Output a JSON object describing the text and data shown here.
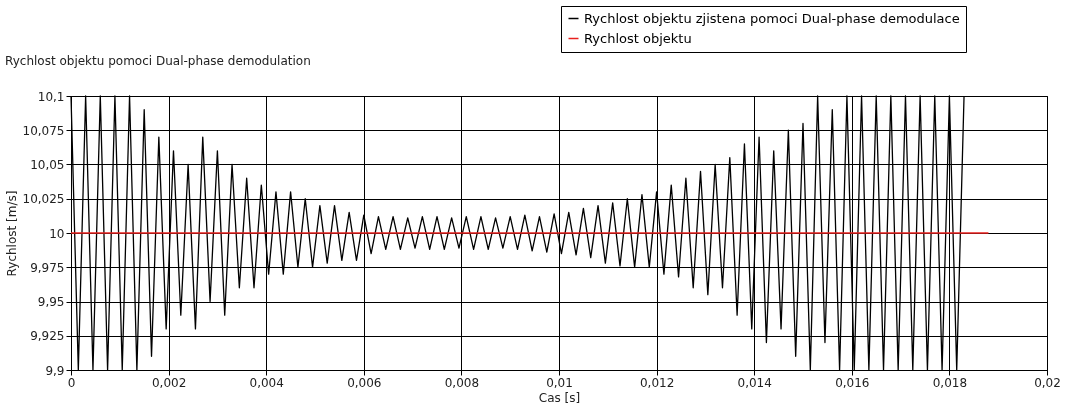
{
  "chart_data": {
    "type": "line",
    "title": "Rychlost objektu pomoci Dual-phase demodulation",
    "xlabel": "Cas [s]",
    "ylabel": "Rychlost [m/s]",
    "xlim": [
      0,
      0.02
    ],
    "ylim": [
      9.9,
      10.1
    ],
    "xticks": [
      0,
      {
        "value": 0.002,
        "label": "0,002"
      },
      {
        "value": 0.004,
        "label": "0,004"
      },
      {
        "value": 0.006,
        "label": "0,006"
      },
      {
        "value": 0.008,
        "label": "0,008"
      },
      {
        "value": 0.01,
        "label": "0,01"
      },
      {
        "value": 0.012,
        "label": "0,012"
      },
      {
        "value": 0.014,
        "label": "0,014"
      },
      {
        "value": 0.016,
        "label": "0,016"
      },
      {
        "value": 0.018,
        "label": "0,018"
      },
      {
        "value": 0.02,
        "label": "0,02"
      }
    ],
    "yticks": [
      {
        "value": 9.9,
        "label": "9,9"
      },
      {
        "value": 9.925,
        "label": "9,925"
      },
      {
        "value": 9.95,
        "label": "9,95"
      },
      {
        "value": 9.975,
        "label": "9,975"
      },
      10,
      {
        "value": 10.025,
        "label": "10,025"
      },
      {
        "value": 10.05,
        "label": "10,05"
      },
      {
        "value": 10.075,
        "label": "10,075"
      },
      {
        "value": 10.1,
        "label": "10,1"
      }
    ],
    "grid": true,
    "legend": "top right",
    "line_style": "solid",
    "marker": "none",
    "series": [
      {
        "name": "Rychlost objektu zjistena pomoci Dual-phase demodulace",
        "color": "#000000",
        "x": [
          0,
          0.00015,
          0.0003,
          0.00045,
          0.0006,
          0.00075,
          0.0009,
          0.00105,
          0.0012,
          0.00135,
          0.0015,
          0.00165,
          0.0018,
          0.00195,
          0.0021,
          0.00225,
          0.0024,
          0.00255,
          0.0027,
          0.00285,
          0.003,
          0.00315,
          0.0033,
          0.00345,
          0.0036,
          0.00375,
          0.0039,
          0.00405,
          0.0042,
          0.00435,
          0.0045,
          0.00465,
          0.0048,
          0.00495,
          0.0051,
          0.00525,
          0.0054,
          0.00555,
          0.0057,
          0.00585,
          0.006,
          0.00615,
          0.0063,
          0.00645,
          0.0066,
          0.00675,
          0.0069,
          0.00705,
          0.0072,
          0.00735,
          0.0075,
          0.00765,
          0.0078,
          0.00795,
          0.0081,
          0.00825,
          0.0084,
          0.00855,
          0.0087,
          0.00885,
          0.009,
          0.00915,
          0.0093,
          0.00945,
          0.0096,
          0.00975,
          0.0099,
          0.01005,
          0.0102,
          0.01035,
          0.0105,
          0.01065,
          0.0108,
          0.01095,
          0.0111,
          0.01125,
          0.0114,
          0.01155,
          0.0117,
          0.01185,
          0.012,
          0.01215,
          0.0123,
          0.01245,
          0.0126,
          0.01275,
          0.0129,
          0.01305,
          0.0132,
          0.01335,
          0.0135,
          0.01365,
          0.0138,
          0.01395,
          0.0141,
          0.01425,
          0.0144,
          0.01455,
          0.0147,
          0.01485,
          0.015,
          0.01515,
          0.0153,
          0.01545,
          0.0156,
          0.01575,
          0.0159,
          0.01605,
          0.0162,
          0.01635,
          0.0165,
          0.01665,
          0.0168,
          0.01695,
          0.0171,
          0.01725,
          0.0174,
          0.01755,
          0.0177,
          0.01785,
          0.018,
          0.01815,
          0.0183
        ],
        "values": [
          10.1,
          9.9,
          10.1,
          9.9,
          10.1,
          9.9,
          10.1,
          9.9,
          10.1,
          9.9,
          10.09,
          9.91,
          10.07,
          9.93,
          10.06,
          9.94,
          10.05,
          9.93,
          10.07,
          9.95,
          10.06,
          9.94,
          10.05,
          9.96,
          10.04,
          9.96,
          10.035,
          9.97,
          10.03,
          9.97,
          10.03,
          9.975,
          10.025,
          9.975,
          10.02,
          9.978,
          10.02,
          9.98,
          10.015,
          9.98,
          10.013,
          9.985,
          10.012,
          9.988,
          10.012,
          9.988,
          10.011,
          9.989,
          10.012,
          9.988,
          10.012,
          9.988,
          10.011,
          9.989,
          10.012,
          9.988,
          10.012,
          9.988,
          10.011,
          9.989,
          10.012,
          9.988,
          10.013,
          9.987,
          10.012,
          9.986,
          10.014,
          9.985,
          10.015,
          9.984,
          10.018,
          9.982,
          10.02,
          9.978,
          10.022,
          9.976,
          10.025,
          9.975,
          10.028,
          9.975,
          10.03,
          9.97,
          10.035,
          9.968,
          10.04,
          9.96,
          10.045,
          9.955,
          10.05,
          9.96,
          10.055,
          9.94,
          10.065,
          9.93,
          10.07,
          9.92,
          10.06,
          9.93,
          10.075,
          9.91,
          10.08,
          9.9,
          10.1,
          9.92,
          10.09,
          9.9,
          10.1,
          9.9,
          10.1,
          9.9,
          10.1,
          9.9,
          10.1,
          9.9,
          10.1,
          9.9,
          10.1,
          9.9,
          10.1,
          9.9,
          10.1,
          9.9,
          10.1
        ]
      },
      {
        "name": "Rychlost objektu",
        "color": "#e8201e",
        "x": [
          0,
          0.0188
        ],
        "values": [
          10,
          10
        ]
      }
    ]
  }
}
